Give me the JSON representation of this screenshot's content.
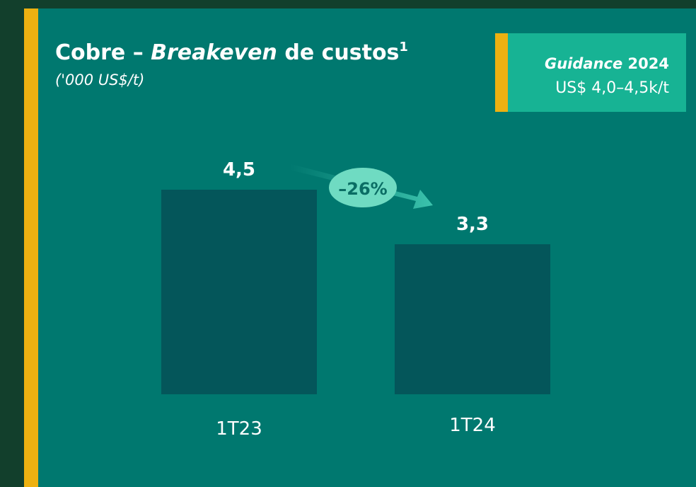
{
  "chart_data": {
    "type": "bar",
    "title": [
      "Cobre –",
      "Breakeven",
      "de custos",
      "1"
    ],
    "subtitle": "('000 US$/t)",
    "guidance": {
      "label": "Guidance",
      "year": "2024",
      "range": "US$ 4,0–4,5k/t"
    },
    "annotation": "–26%",
    "categories": [
      "1T23",
      "1T24"
    ],
    "values": [
      4.5,
      3.3
    ],
    "value_labels": [
      "4,5",
      "3,3"
    ],
    "color": "#04565a"
  }
}
